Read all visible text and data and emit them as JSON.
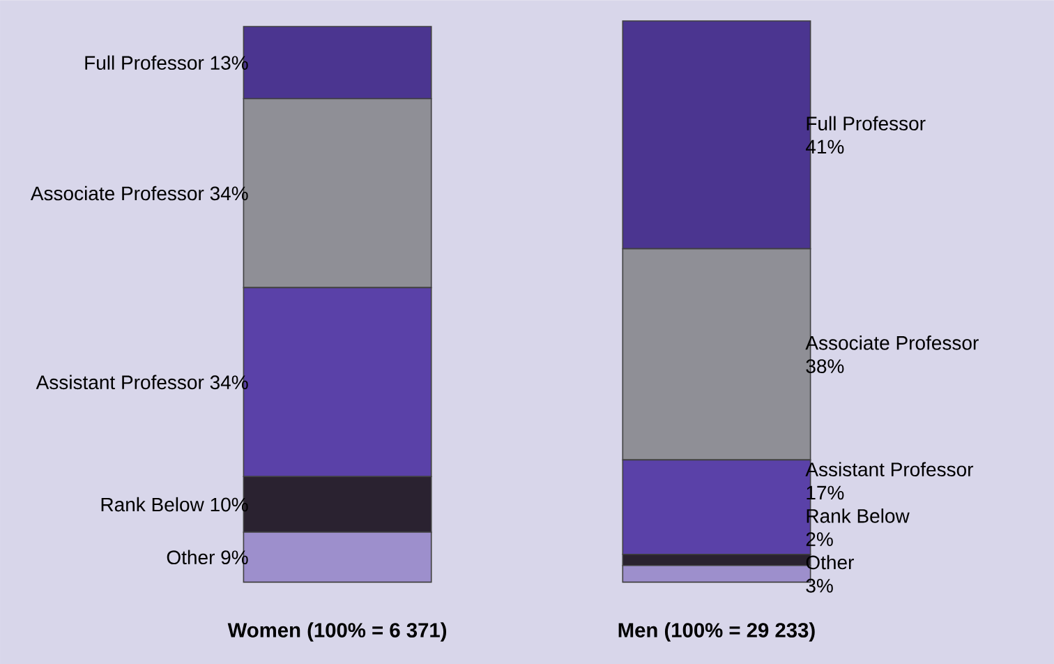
{
  "chart_data": {
    "type": "bar",
    "stacked": true,
    "categories": [
      "Women (100% = 6 371)",
      "Men (100% = 29 233)"
    ],
    "series": [
      {
        "name": "Other",
        "color": "#9d8fcc",
        "values": [
          9,
          3
        ],
        "value_labels": [
          "9%",
          "3%"
        ]
      },
      {
        "name": "Rank Below",
        "color": "#2a2230",
        "values": [
          10,
          2
        ],
        "value_labels": [
          "10%",
          "2%"
        ]
      },
      {
        "name": "Assistant Professor",
        "color": "#5a41a8",
        "values": [
          34,
          17
        ],
        "value_labels": [
          "34%",
          "17%"
        ]
      },
      {
        "name": "Associate Professor",
        "color": "#8f8f96",
        "values": [
          34,
          38
        ],
        "value_labels": [
          "34%",
          "38%"
        ]
      },
      {
        "name": "Full Professor",
        "color": "#4b3590",
        "values": [
          13,
          41
        ],
        "value_labels": [
          "13%",
          "41%"
        ]
      }
    ]
  }
}
